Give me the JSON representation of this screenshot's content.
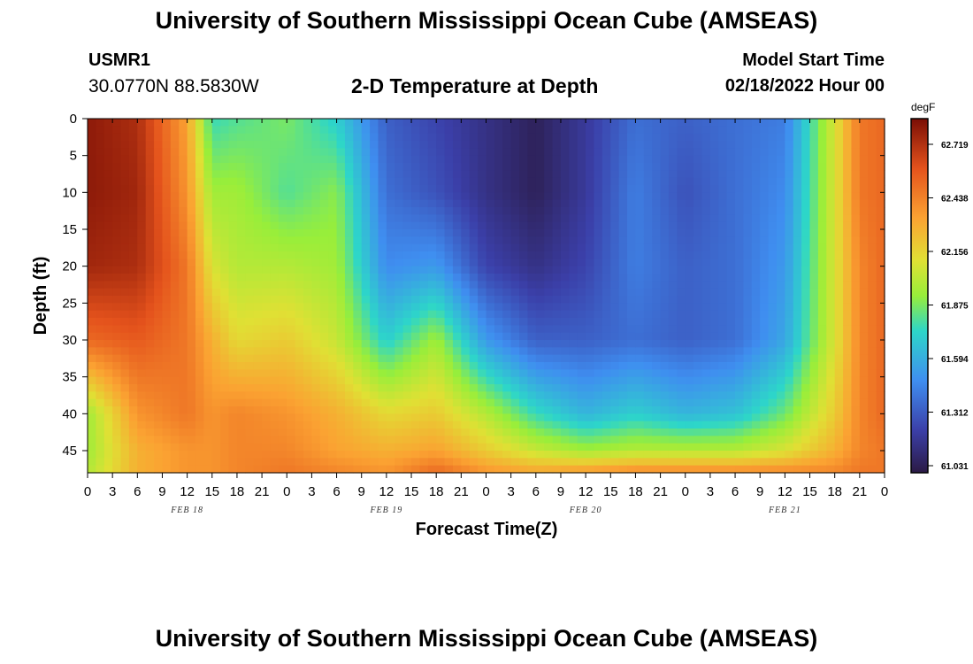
{
  "page": {
    "title": "University of Southern Mississippi Ocean Cube (AMSEAS)",
    "footer_title": "University of Southern Mississippi Ocean Cube (AMSEAS)",
    "station_id": "USMR1",
    "station_coords": "30.0770N  88.5830W",
    "chart_title": "2-D Temperature at Depth",
    "model_start_label": "Model Start Time",
    "model_start_value": "02/18/2022 Hour 00"
  },
  "chart_data": {
    "type": "heatmap",
    "title": "2-D Temperature at Depth",
    "xlabel": "Forecast Time(Z)",
    "ylabel": "Depth (ft)",
    "x_range_hours": [
      0,
      96
    ],
    "x_tick_step_hours": 3,
    "x_tick_labels": [
      "0",
      "3",
      "6",
      "9",
      "12",
      "15",
      "18",
      "21",
      "0",
      "3",
      "6",
      "9",
      "12",
      "15",
      "18",
      "21",
      "0",
      "3",
      "6",
      "9",
      "12",
      "15",
      "18",
      "21",
      "0",
      "3",
      "6",
      "9",
      "12",
      "15",
      "18",
      "21",
      "0"
    ],
    "date_labels": [
      {
        "label": "FEB 18",
        "hour": 12
      },
      {
        "label": "FEB 19",
        "hour": 36
      },
      {
        "label": "FEB 20",
        "hour": 60
      },
      {
        "label": "FEB 21",
        "hour": 84
      }
    ],
    "y_range": [
      0,
      48
    ],
    "y_ticks": [
      0,
      5,
      10,
      15,
      20,
      25,
      30,
      35,
      40,
      45
    ],
    "colorbar": {
      "unit": "degF",
      "ticks": [
        "62.719",
        "62.438",
        "62.156",
        "61.875",
        "61.594",
        "61.312",
        "61.031"
      ],
      "min": 60.9,
      "max": 62.85
    },
    "grid_hours": [
      0,
      6,
      12,
      15,
      18,
      24,
      30,
      36,
      42,
      48,
      54,
      60,
      66,
      72,
      78,
      84,
      90,
      93,
      96
    ],
    "grid_depths": [
      0,
      10,
      20,
      30,
      40,
      45,
      48
    ],
    "temperature_degF": [
      [
        62.8,
        62.72,
        62.3,
        61.7,
        61.75,
        61.82,
        61.65,
        61.25,
        61.15,
        61.05,
        60.95,
        61.1,
        61.3,
        61.25,
        61.3,
        61.35,
        62.05,
        62.45,
        62.5
      ],
      [
        62.8,
        62.75,
        62.35,
        61.9,
        61.9,
        61.75,
        61.85,
        61.3,
        61.2,
        61.05,
        60.95,
        61.1,
        61.35,
        61.2,
        61.3,
        61.4,
        62.05,
        62.45,
        62.5
      ],
      [
        62.75,
        62.72,
        62.45,
        62.05,
        61.95,
        61.95,
        61.9,
        61.4,
        61.45,
        61.15,
        61.05,
        61.15,
        61.35,
        61.25,
        61.3,
        61.45,
        62.05,
        62.4,
        62.5
      ],
      [
        62.5,
        62.55,
        62.45,
        62.25,
        62.1,
        62.15,
        62.0,
        61.65,
        61.9,
        61.45,
        61.25,
        61.25,
        61.3,
        61.25,
        61.3,
        61.5,
        62.05,
        62.4,
        62.5
      ],
      [
        61.9,
        62.35,
        62.45,
        62.35,
        62.4,
        62.35,
        62.25,
        62.1,
        62.15,
        61.95,
        61.7,
        61.55,
        61.65,
        61.55,
        61.6,
        61.8,
        62.15,
        62.4,
        62.5
      ],
      [
        61.9,
        62.25,
        62.35,
        62.35,
        62.4,
        62.4,
        62.3,
        62.25,
        62.3,
        62.15,
        62.0,
        61.9,
        61.95,
        61.95,
        61.95,
        62.05,
        62.25,
        62.4,
        62.45
      ],
      [
        61.95,
        62.25,
        62.35,
        62.35,
        62.4,
        62.45,
        62.4,
        62.35,
        62.5,
        62.35,
        62.3,
        62.35,
        62.4,
        62.4,
        62.4,
        62.4,
        62.4,
        62.45,
        62.45
      ]
    ]
  }
}
